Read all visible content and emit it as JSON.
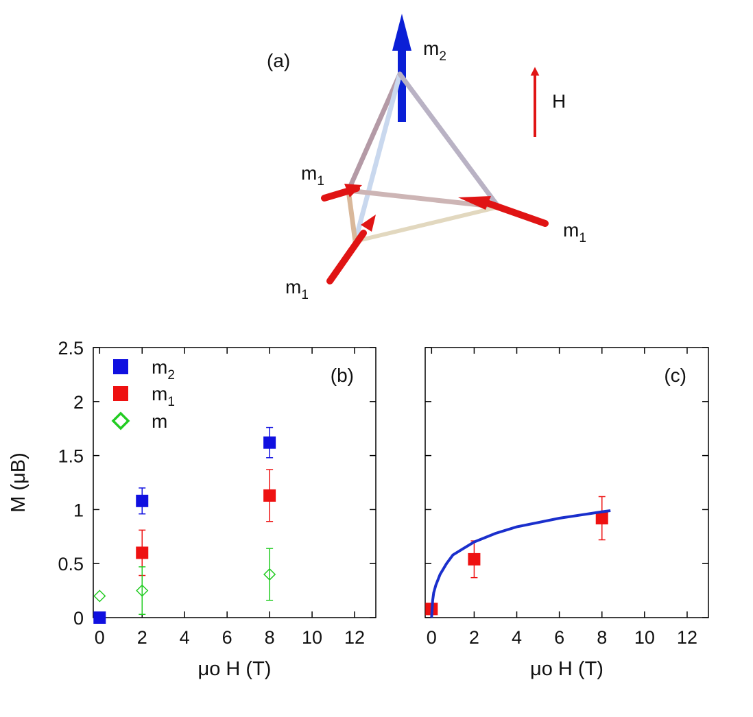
{
  "panel_a": {
    "label": "(a)",
    "field_label": "H",
    "moment_labels": {
      "top": {
        "base": "m",
        "sub": "2"
      },
      "left": {
        "base": "m",
        "sub": "1"
      },
      "right": {
        "base": "m",
        "sub": "1"
      },
      "bottom": {
        "base": "m",
        "sub": "1"
      }
    },
    "colors": {
      "m2_arrow": "#0a1fd6",
      "m1_arrow": "#e01414",
      "field_arrow": "#e01414",
      "edge_blue": "#c3d3ea",
      "edge_tan": "#d9b89a"
    }
  },
  "chart_data": [
    {
      "type": "scatter",
      "panel_label": "(b)",
      "xlabel": "μo H (T)",
      "ylabel": "M (μB)",
      "xlim": [
        -0.3,
        13
      ],
      "ylim": [
        0,
        2.5
      ],
      "xticks": [
        "0",
        "2",
        "4",
        "6",
        "8",
        "10",
        "12"
      ],
      "yticks": [
        "0",
        "0.5",
        "1",
        "1.5",
        "2",
        "2.5"
      ],
      "legend_position": "top-left",
      "series": [
        {
          "name": "m",
          "sub": "2",
          "marker": "filled-square",
          "color": "#1010e0",
          "x": [
            0,
            2,
            8
          ],
          "y": [
            0,
            1.08,
            1.62
          ],
          "err": [
            0,
            0.12,
            0.14
          ]
        },
        {
          "name": "m",
          "sub": "1",
          "marker": "filled-square",
          "color": "#ee1111",
          "x": [
            2,
            8
          ],
          "y": [
            0.6,
            1.13
          ],
          "err": [
            0.21,
            0.24
          ]
        },
        {
          "name": "m",
          "sub": "",
          "marker": "open-diamond",
          "color": "#22cc22",
          "x": [
            0,
            2,
            8
          ],
          "y": [
            0.2,
            0.25,
            0.4
          ],
          "err": [
            0,
            0.22,
            0.24
          ]
        }
      ]
    },
    {
      "type": "scatter",
      "panel_label": "(c)",
      "xlabel": "μo H (T)",
      "ylabel": "",
      "xlim": [
        -0.3,
        13
      ],
      "ylim": [
        0,
        2.5
      ],
      "xticks": [
        "0",
        "2",
        "4",
        "6",
        "8",
        "10",
        "12"
      ],
      "yticks": [],
      "series": [
        {
          "name": "data",
          "marker": "filled-square",
          "color": "#ee1111",
          "x": [
            0,
            2,
            8
          ],
          "y": [
            0.08,
            0.54,
            0.92
          ],
          "err": [
            0,
            0.17,
            0.2
          ]
        },
        {
          "name": "fit",
          "marker": "line",
          "color": "#1a2fcc",
          "x": [
            0,
            0.05,
            0.1,
            0.2,
            0.4,
            0.7,
            1,
            1.5,
            2,
            3,
            4,
            5,
            6,
            7,
            8,
            8.4
          ],
          "y": [
            0,
            0.16,
            0.23,
            0.3,
            0.4,
            0.5,
            0.58,
            0.64,
            0.7,
            0.78,
            0.84,
            0.88,
            0.92,
            0.95,
            0.98,
            0.99
          ]
        }
      ]
    }
  ]
}
